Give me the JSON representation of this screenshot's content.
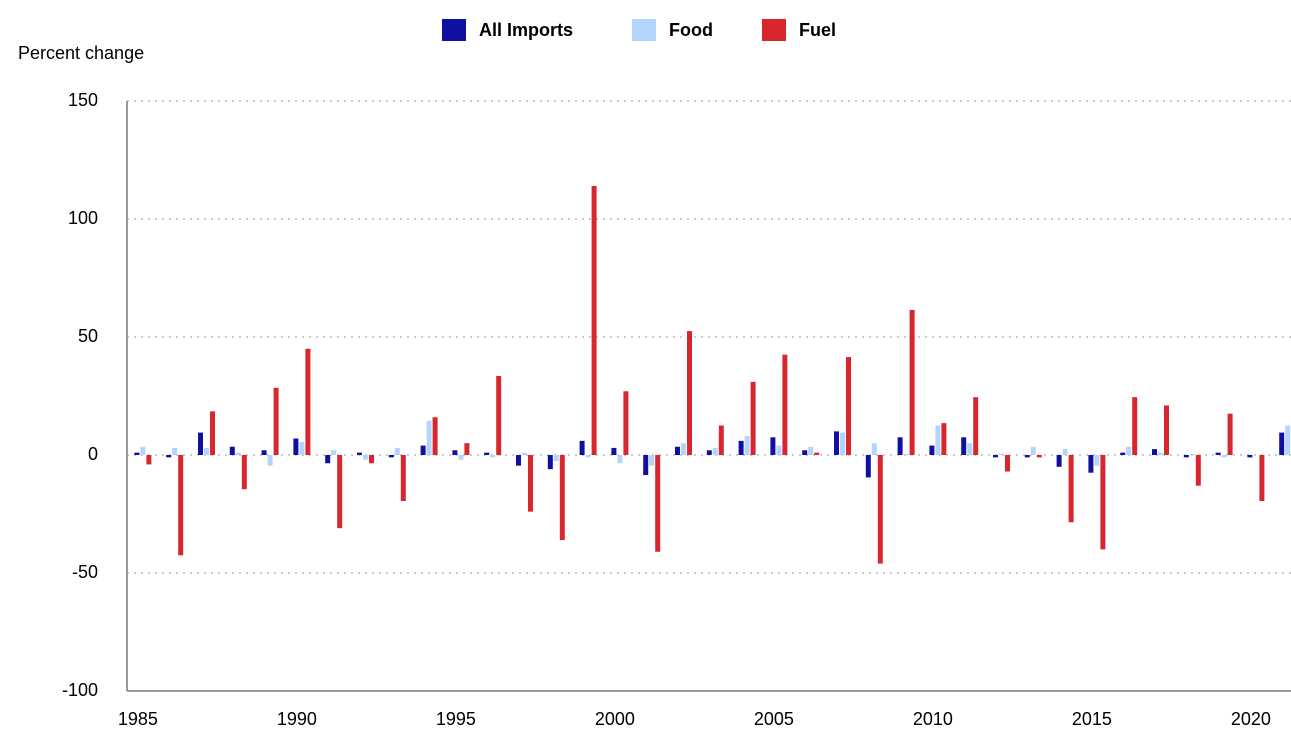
{
  "chart_data": {
    "type": "bar",
    "y_label": "Percent change",
    "categories": [
      "1985",
      null,
      null,
      null,
      null,
      "1990",
      null,
      null,
      null,
      null,
      "1995",
      null,
      null,
      null,
      null,
      "2000",
      null,
      null,
      null,
      null,
      "2005",
      null,
      null,
      null,
      null,
      "2010",
      null,
      null,
      null,
      null,
      "2015",
      null,
      null,
      null,
      null,
      "2020",
      null
    ],
    "series": [
      {
        "name": "All Imports",
        "color": "#1010a0",
        "values": [
          1,
          -1,
          9.5,
          3.5,
          2,
          7,
          -3.5,
          1,
          -1,
          4,
          2,
          1,
          -4.5,
          -6,
          6,
          3,
          -8.5,
          3.5,
          2,
          6,
          7.5,
          2,
          10,
          -9.5,
          7.5,
          4,
          7.5,
          -1,
          -1,
          -5,
          -7.5,
          1,
          2.5,
          -1,
          1,
          -1,
          9.5
        ]
      },
      {
        "name": "Food",
        "color": "#b3d4fc",
        "values": [
          3.5,
          3,
          3,
          1,
          -4.5,
          5.5,
          2,
          -2,
          3,
          14.5,
          -2,
          -1,
          1,
          -2.5,
          -1,
          -3.5,
          -4.5,
          5,
          3,
          8,
          4,
          3.5,
          9.5,
          5,
          0.5,
          12.5,
          5,
          0.5,
          3.5,
          2.5,
          -4.5,
          3.5,
          1,
          0.5,
          -1,
          0,
          12.5
        ]
      },
      {
        "name": "Fuel",
        "color": "#d7262e",
        "values": [
          -4,
          -42.5,
          18.5,
          -14.5,
          28.5,
          45,
          -31,
          -3.5,
          -19.5,
          16,
          5,
          33.5,
          -24,
          -36,
          114,
          27,
          -41,
          52.5,
          12.5,
          31,
          42.5,
          1,
          41.5,
          -46,
          61.5,
          13.5,
          24.5,
          -7,
          -1,
          -28.5,
          -40,
          24.5,
          21,
          -13,
          17.5,
          -19.5,
          null
        ]
      }
    ],
    "ylim": [
      -100,
      150
    ],
    "yticks": [
      -100,
      -50,
      0,
      50,
      100,
      150
    ],
    "grid": true
  }
}
